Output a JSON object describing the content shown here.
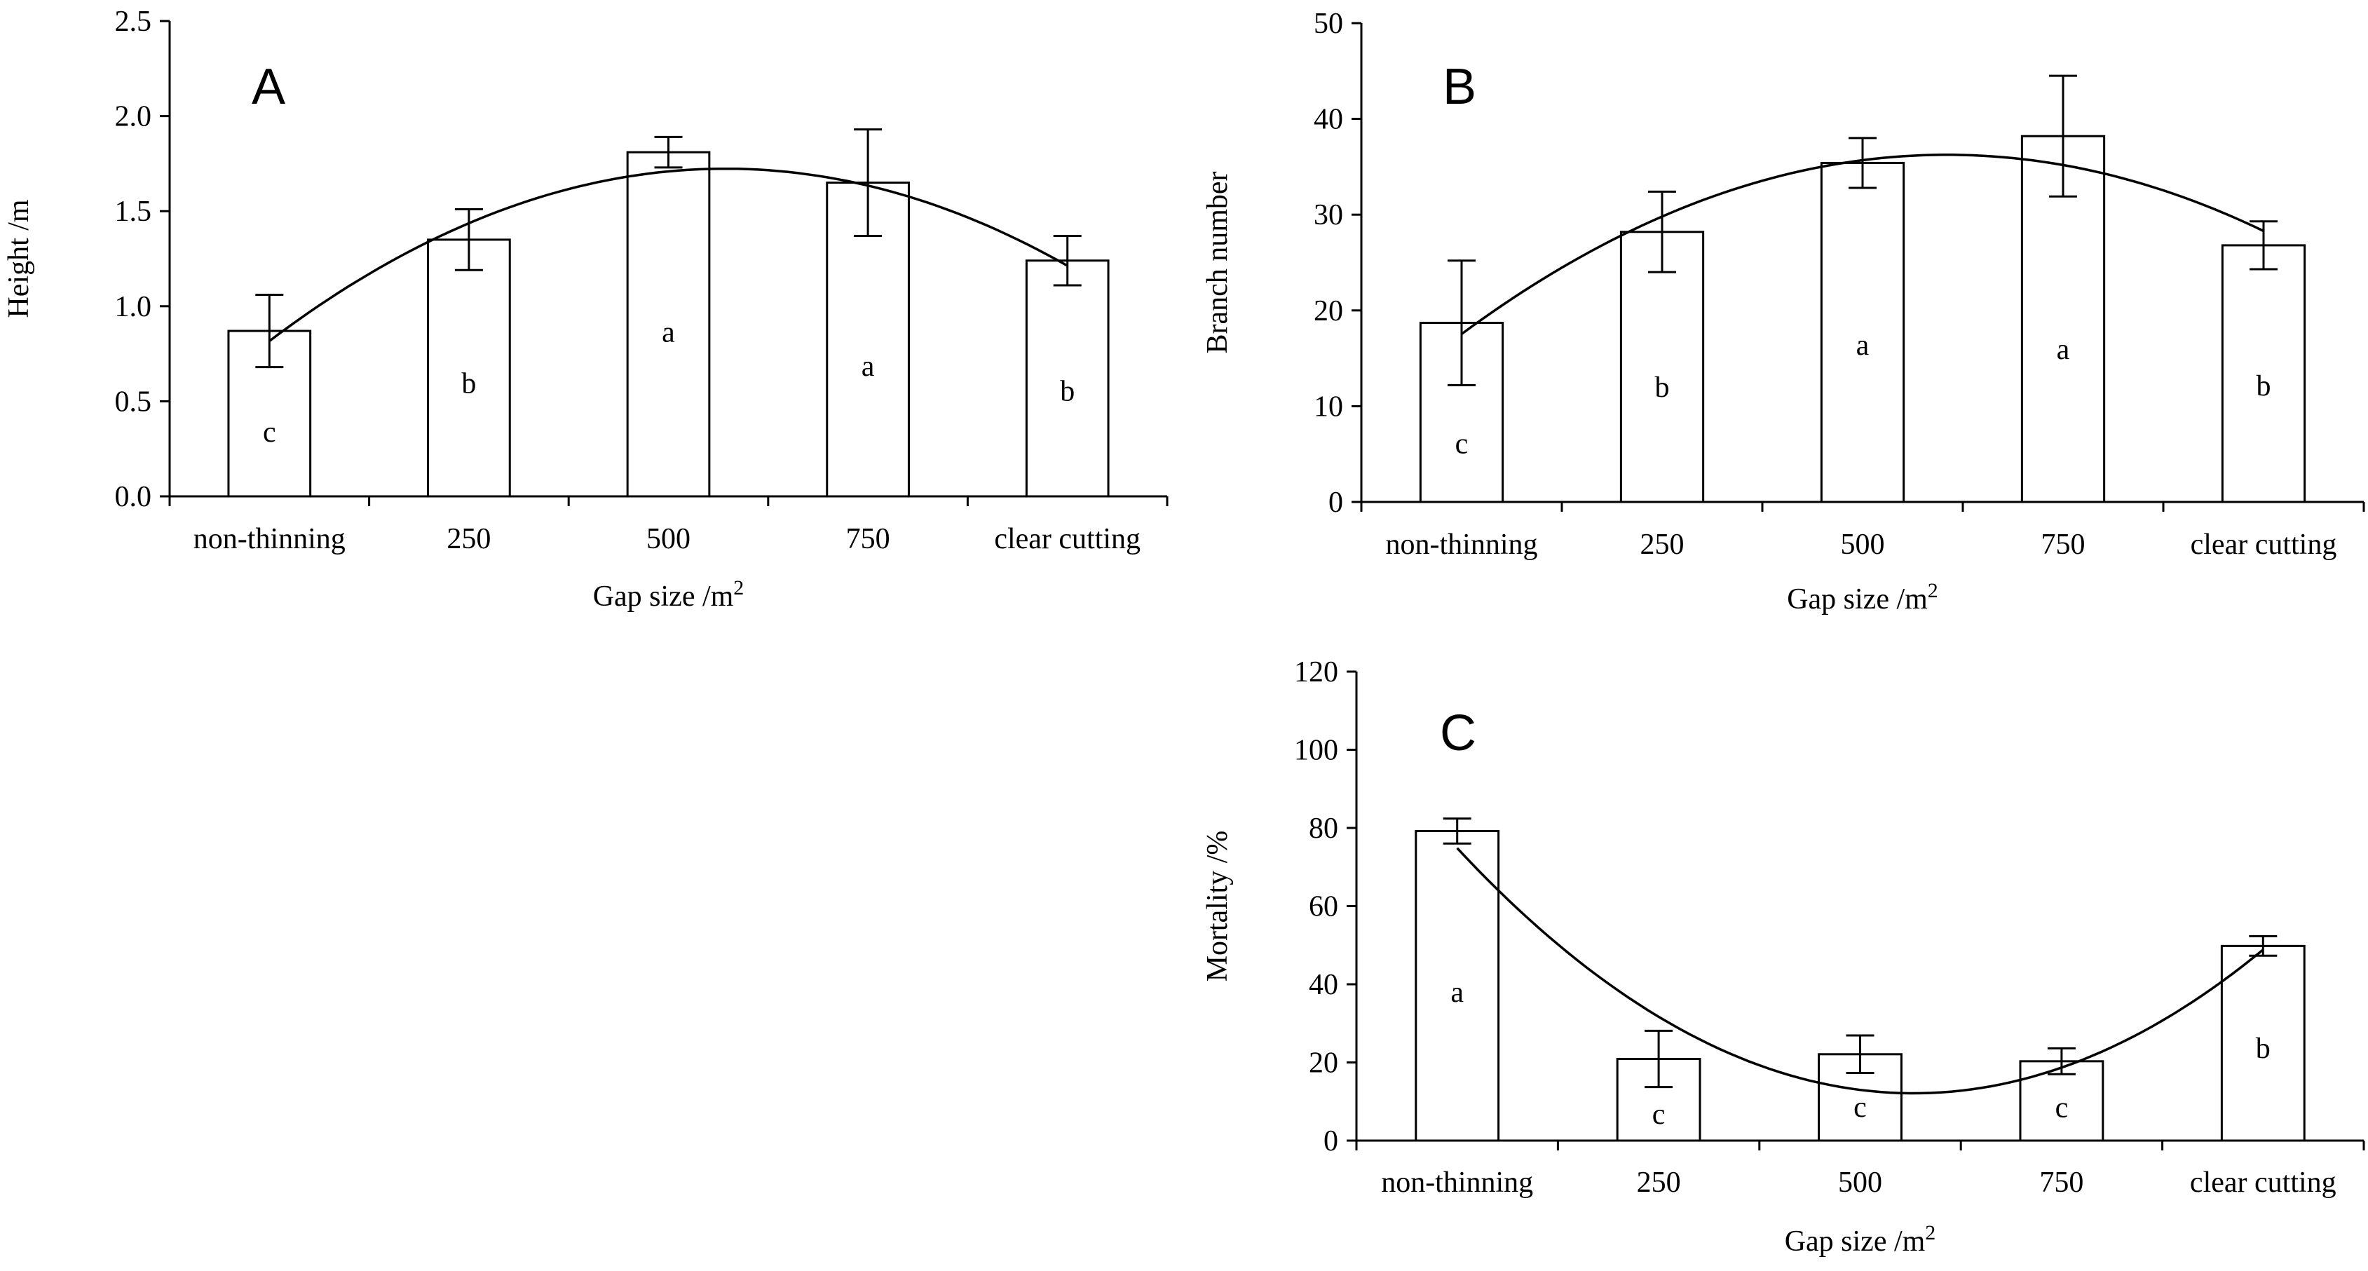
{
  "chart_data": [
    {
      "id": "A",
      "type": "bar",
      "panel_label": "A",
      "categories": [
        "non-thinning",
        "250",
        "500",
        "750",
        "clear cutting"
      ],
      "values": [
        0.87,
        1.35,
        1.81,
        1.65,
        1.24
      ],
      "errors": [
        0.19,
        0.16,
        0.08,
        0.28,
        0.13
      ],
      "letters": [
        "c",
        "b",
        "a",
        "a",
        "b"
      ],
      "fit": {
        "type": "quadratic",
        "points": [
          0.83,
          1.4,
          1.74,
          1.63,
          1.21
        ]
      },
      "xlabel": "Gap size /m",
      "xlabel_sup": "2",
      "ylabel": "Height /m",
      "ylim": [
        0,
        2.5
      ],
      "yticks": [
        "0.0",
        "0.5",
        "1.0",
        "1.5",
        "2.0",
        "2.5"
      ]
    },
    {
      "id": "B",
      "type": "bar",
      "panel_label": "B",
      "categories": [
        "non-thinning",
        "250",
        "500",
        "750",
        "clear cutting"
      ],
      "values": [
        18.7,
        28.2,
        35.4,
        38.2,
        26.8
      ],
      "errors": [
        6.5,
        4.2,
        2.6,
        6.3,
        2.5
      ],
      "letters": [
        "c",
        "b",
        "a",
        "a",
        "b"
      ],
      "fit": {
        "type": "quadratic",
        "points": [
          17.6,
          29.7,
          35.6,
          35.4,
          28.2
        ]
      },
      "xlabel": "Gap size /m",
      "xlabel_sup": "2",
      "ylabel": "Branch number",
      "ylim": [
        0,
        50
      ],
      "yticks": [
        "0",
        "10",
        "20",
        "30",
        "40",
        "50"
      ]
    },
    {
      "id": "C",
      "type": "bar",
      "panel_label": "C",
      "categories": [
        "non-thinning",
        "250",
        "500",
        "750",
        "clear cutting"
      ],
      "values": [
        79.2,
        20.9,
        22.1,
        20.3,
        49.8
      ],
      "errors": [
        3.2,
        7.2,
        4.8,
        3.3,
        2.5
      ],
      "letters": [
        "a",
        "c",
        "c",
        "c",
        "b"
      ],
      "fit": {
        "type": "quadratic",
        "points": [
          76.0,
          29.0,
          14.0,
          20.0,
          48.0
        ]
      },
      "xlabel": "Gap size /m",
      "xlabel_sup": "2",
      "ylabel": "Mortality /%",
      "ylim": [
        0,
        120
      ],
      "yticks": [
        "0",
        "20",
        "40",
        "60",
        "80",
        "100",
        "120"
      ]
    }
  ]
}
